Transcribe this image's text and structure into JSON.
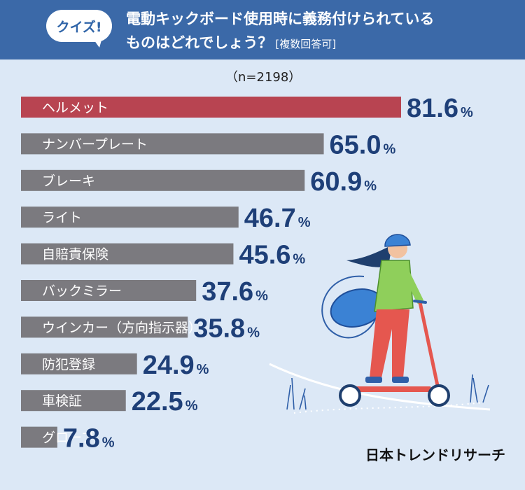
{
  "header": {
    "badge": "クイズ!",
    "question_line1": "電動キックボード使用時に義務付けられている",
    "question_line2": "ものはどれでしょう？",
    "question_note": "[複数回答可]"
  },
  "sample_size": "（n=2198）",
  "brand": "日本トレンドリサーチ",
  "colors": {
    "header_bg": "#3b69a8",
    "background": "#dce8f6",
    "highlight_bar": "#b84451",
    "bar": "#7b7a7f",
    "value_text": "#1e3f78"
  },
  "chart_data": {
    "type": "bar",
    "orientation": "horizontal",
    "categories": [
      "ヘルメット",
      "ナンバープレート",
      "ブレーキ",
      "ライト",
      "自賠責保険",
      "バックミラー",
      "ウインカー（方向指示器）",
      "防犯登録",
      "車検証",
      "グローブ"
    ],
    "values": [
      81.6,
      65.0,
      60.9,
      46.7,
      45.6,
      37.6,
      35.8,
      24.9,
      22.5,
      7.8
    ],
    "value_labels": [
      "81.6",
      "65.0",
      "60.9",
      "46.7",
      "45.6",
      "37.6",
      "35.8",
      "24.9",
      "22.5",
      "7.8"
    ],
    "unit": "%",
    "highlight_index": 0,
    "xlim": [
      0,
      100
    ]
  }
}
